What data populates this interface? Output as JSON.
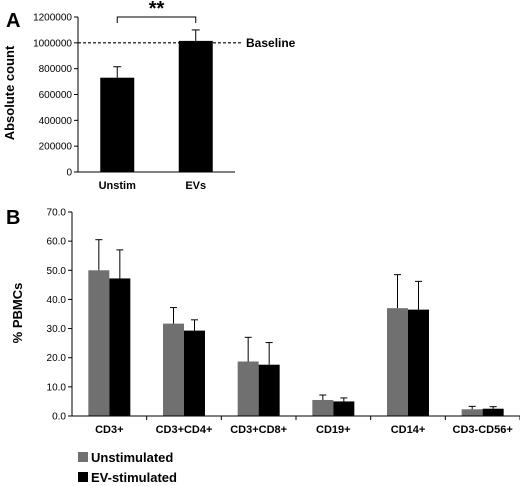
{
  "chart_data": [
    {
      "panel": "A",
      "type": "bar",
      "categories": [
        "Unstim",
        "EVs"
      ],
      "values": [
        730000,
        1015000
      ],
      "errors": [
        85000,
        85000
      ],
      "ylabel": "Absolute count",
      "ylim": [
        0,
        1200000
      ],
      "yticks": [
        "0",
        "200000",
        "400000",
        "600000",
        "800000",
        "1000000",
        "1200000"
      ],
      "reference_line": {
        "value": 1000000,
        "label": "Baseline"
      },
      "significance": "**",
      "bar_color": "#000000"
    },
    {
      "panel": "B",
      "type": "bar",
      "categories": [
        "CD3+",
        "CD3+CD4+",
        "CD3+CD8+",
        "CD19+",
        "CD14+",
        "CD3-CD56+"
      ],
      "ylabel": "% PBMCs",
      "ylim": [
        0,
        70
      ],
      "yticks": [
        "0.0",
        "10.0",
        "20.0",
        "30.0",
        "40.0",
        "50.0",
        "60.0",
        "70.0"
      ],
      "series": [
        {
          "name": "Unstimulated",
          "color": "#707070",
          "values": [
            50.0,
            31.7,
            18.7,
            5.5,
            37.0,
            2.3
          ],
          "errors": [
            10.5,
            5.5,
            8.3,
            1.7,
            11.5,
            1.0
          ]
        },
        {
          "name": "EV-stimulated",
          "color": "#000000",
          "values": [
            47.2,
            29.3,
            17.6,
            5.0,
            36.5,
            2.5
          ],
          "errors": [
            9.8,
            3.7,
            7.6,
            1.2,
            9.7,
            0.7
          ]
        }
      ],
      "legend_position": "bottom-left"
    }
  ]
}
